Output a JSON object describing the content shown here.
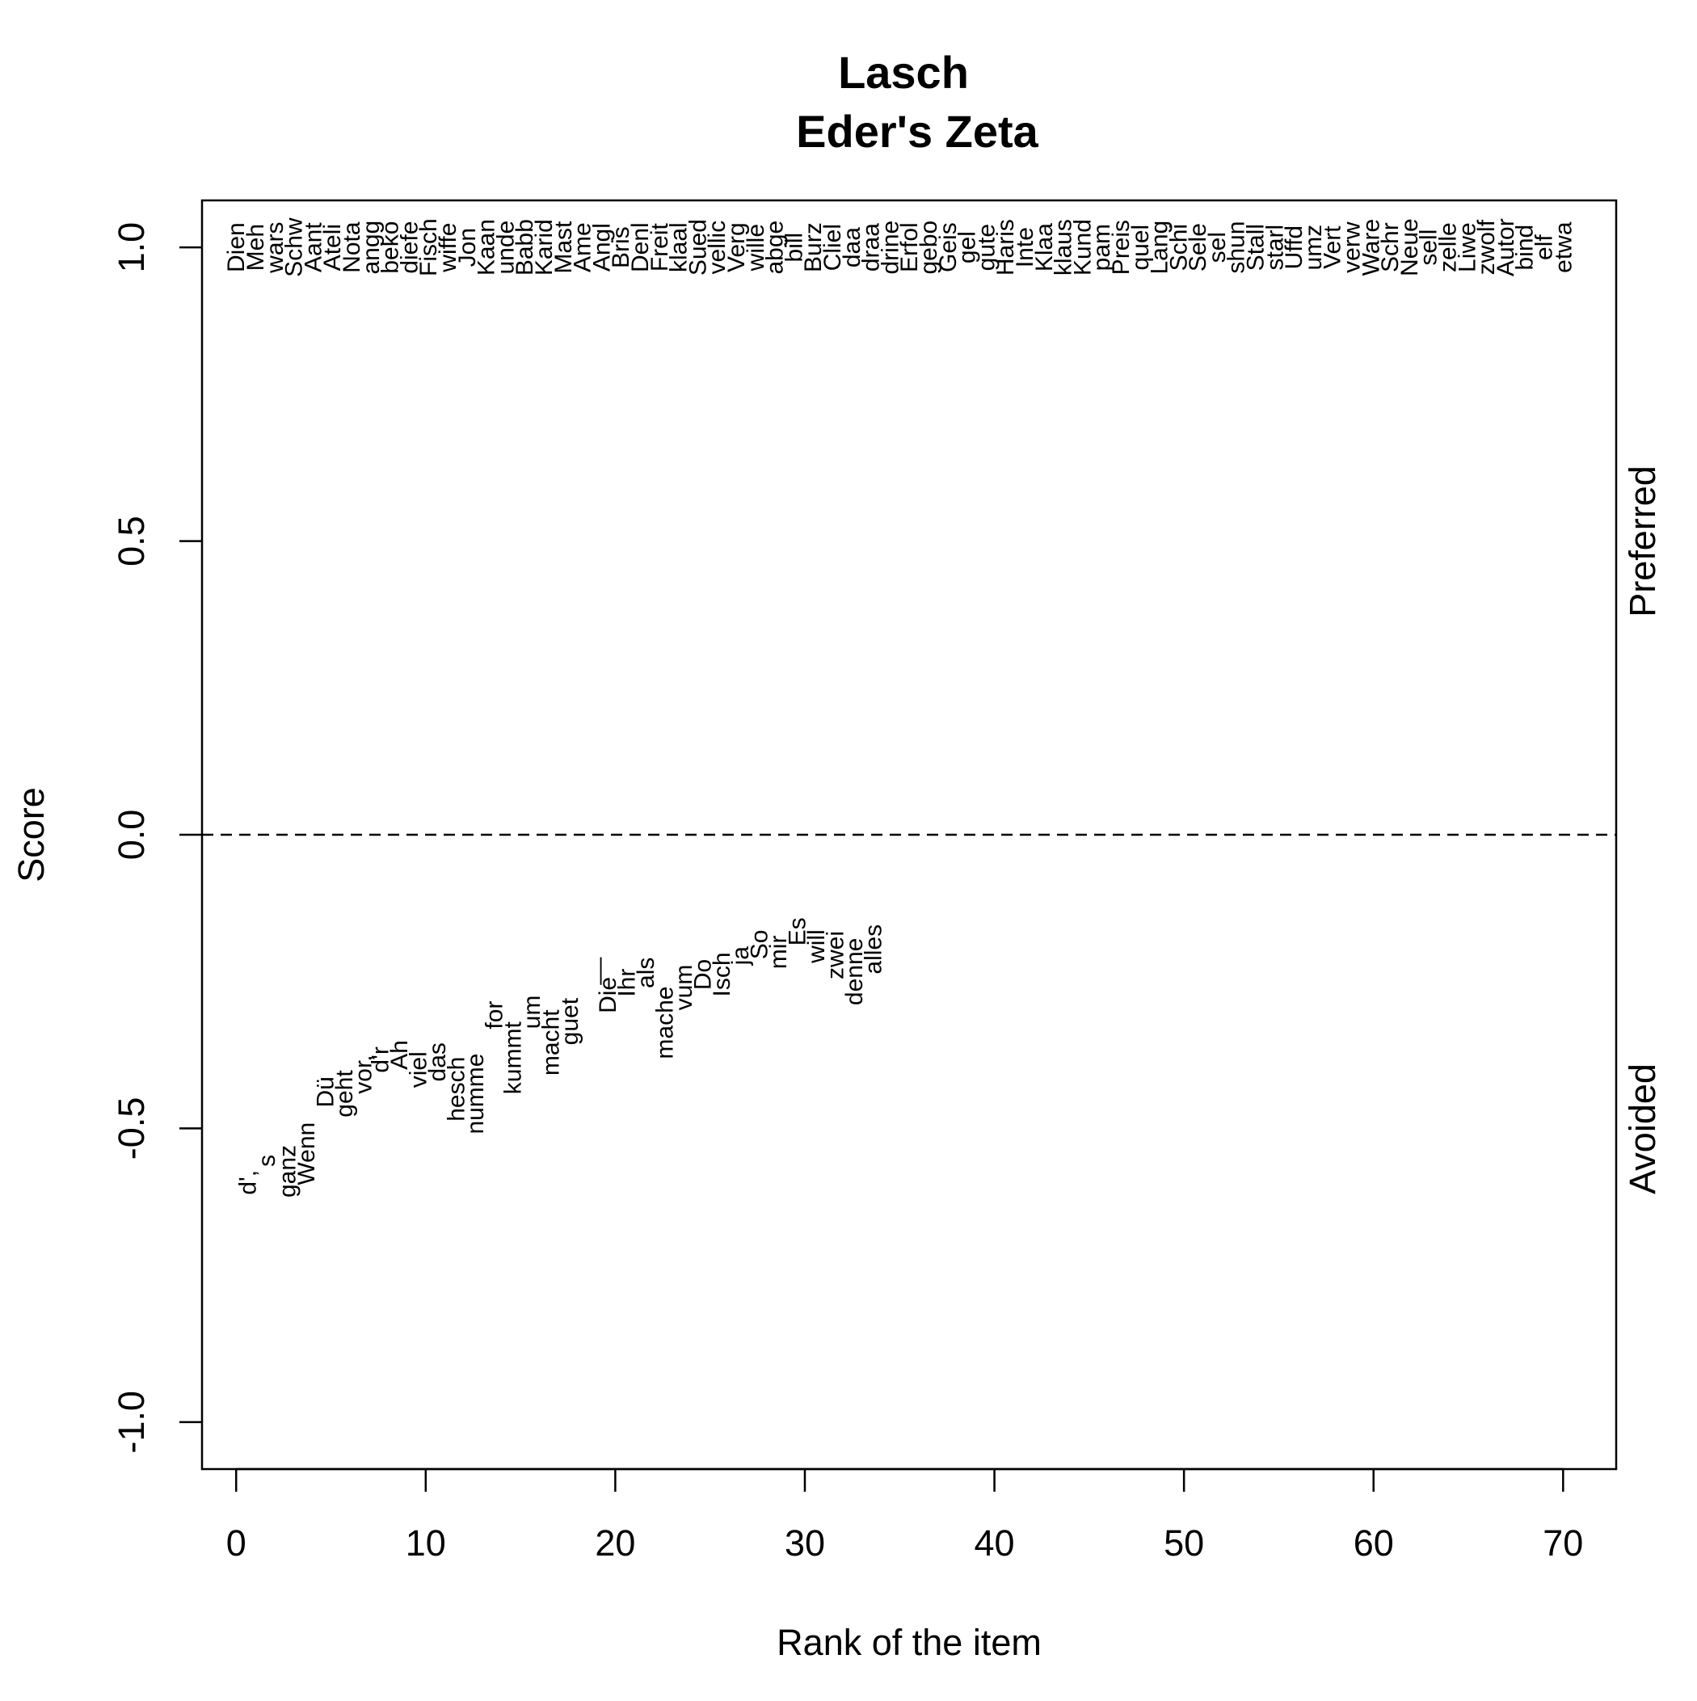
{
  "chart_data": {
    "type": "scatter",
    "title": "Lasch",
    "subtitle": "Eder's Zeta",
    "xlabel": "Rank of the item",
    "ylabel": "Score",
    "xlim": [
      -1.8,
      72.8
    ],
    "ylim": [
      -1.08,
      1.08
    ],
    "x_ticks": [
      "0",
      "10",
      "20",
      "30",
      "40",
      "50",
      "60",
      "70"
    ],
    "y_ticks": [
      "-1.0",
      "-0.5",
      "0.0",
      "0.5",
      "1.0"
    ],
    "reference_line": {
      "y": 0.0,
      "style": "dashed"
    },
    "right_labels": {
      "top": "Preferred",
      "bottom": "Avoided"
    },
    "grid": false,
    "preferred": {
      "score": 1.0,
      "words": [
        "Dien",
        "Meh",
        "wars",
        "Schw",
        "Aant",
        "Ateli",
        "Nota",
        "angg",
        "beko",
        "diefe",
        "Fisch",
        "wiffe",
        "Jon",
        "Kaan",
        "unde",
        "Babb",
        "Karid",
        "Mast",
        "Ame",
        "Angl",
        "Bris",
        "Denl",
        "Freit",
        "klaal",
        "Sued",
        "vellic",
        "Verg",
        "wille",
        "abge",
        "bill",
        "Burz",
        "Cliel",
        "daa",
        "draa",
        "drine",
        "Erfol",
        "gebo",
        "Geis",
        "gel",
        "gute",
        "Haris",
        "Inte",
        "Klaa",
        "klaus",
        "Kund",
        "pam",
        "Preis",
        "quel",
        "Lang",
        "Schi",
        "Sele",
        "sel",
        "shun",
        "Stall",
        "starl",
        "Uffd",
        "umz",
        "Vert",
        "verw",
        "Ware",
        "Schr",
        "Neue",
        "sell",
        "zelle",
        "Liwe",
        "zwolf",
        "Autor",
        "bind",
        "elf",
        "etwa"
      ]
    },
    "avoided": [
      {
        "word": "d',",
        "rank": 0.6,
        "score": -0.592
      },
      {
        "word": "s",
        "rank": 1.6,
        "score": -0.555
      },
      {
        "word": "ganz",
        "rank": 2.7,
        "score": -0.573
      },
      {
        "word": "Wenn",
        "rank": 3.7,
        "score": -0.543
      },
      {
        "word": "Dü",
        "rank": 4.7,
        "score": -0.438
      },
      {
        "word": "geht",
        "rank": 5.7,
        "score": -0.441
      },
      {
        "word": "vor,",
        "rank": 6.7,
        "score": -0.408
      },
      {
        "word": "d'r",
        "rank": 7.6,
        "score": -0.383
      },
      {
        "word": "Ah",
        "rank": 8.6,
        "score": -0.375
      },
      {
        "word": "viel",
        "rank": 9.6,
        "score": -0.4
      },
      {
        "word": "das",
        "rank": 10.6,
        "score": -0.387
      },
      {
        "word": "hesch",
        "rank": 11.6,
        "score": -0.433
      },
      {
        "word": "numme",
        "rank": 12.6,
        "score": -0.441
      },
      {
        "word": "for",
        "rank": 13.6,
        "score": -0.307
      },
      {
        "word": "kummt",
        "rank": 14.6,
        "score": -0.38
      },
      {
        "word": "um",
        "rank": 15.6,
        "score": -0.302
      },
      {
        "word": "macht",
        "rank": 16.6,
        "score": -0.354
      },
      {
        "word": "guet",
        "rank": 17.6,
        "score": -0.318
      },
      {
        "word": "__",
        "rank": 18.6,
        "score": -0.232
      },
      {
        "word": "Die",
        "rank": 19.6,
        "score": -0.273
      },
      {
        "word": "Ihr",
        "rank": 20.6,
        "score": -0.252
      },
      {
        "word": "als",
        "rank": 21.6,
        "score": -0.235
      },
      {
        "word": "mache",
        "rank": 22.6,
        "score": -0.32
      },
      {
        "word": "vum",
        "rank": 23.6,
        "score": -0.26
      },
      {
        "word": "Do",
        "rank": 24.6,
        "score": -0.238
      },
      {
        "word": "Isch",
        "rank": 25.6,
        "score": -0.238
      },
      {
        "word": "ja",
        "rank": 26.6,
        "score": -0.206
      },
      {
        "word": "So",
        "rank": 27.6,
        "score": -0.187
      },
      {
        "word": "mir",
        "rank": 28.6,
        "score": -0.2
      },
      {
        "word": "Es",
        "rank": 29.6,
        "score": -0.165
      },
      {
        "word": "will",
        "rank": 30.6,
        "score": -0.19
      },
      {
        "word": "zwei",
        "rank": 31.6,
        "score": -0.205
      },
      {
        "word": "denne",
        "rank": 32.6,
        "score": -0.233
      },
      {
        "word": "alles",
        "rank": 33.6,
        "score": -0.195
      }
    ]
  }
}
